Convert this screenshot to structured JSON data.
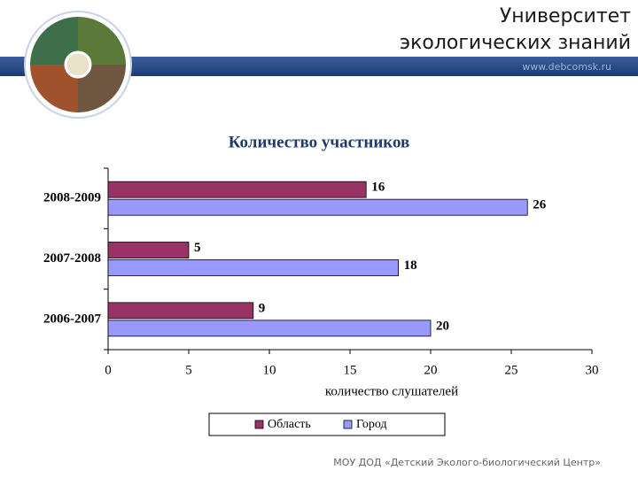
{
  "header": {
    "title_lines": [
      "Университет",
      "экологических знаний"
    ],
    "website": "www.debcomsk.ru"
  },
  "footer": "МОУ ДОД «Детский Эколого-биологический Центр»",
  "chart_data": {
    "type": "hbar",
    "title": "Количество участников",
    "categories": [
      "2008-2009",
      "2007-2008",
      "2006-2007"
    ],
    "series": [
      {
        "name": "Область",
        "color": "#993366",
        "values": [
          16,
          5,
          9
        ]
      },
      {
        "name": "Город",
        "color": "#9999ff",
        "values": [
          26,
          18,
          20
        ]
      }
    ],
    "xlabel": "количество слушателей",
    "xlim": [
      0,
      30
    ],
    "xticks": [
      0,
      5,
      10,
      15,
      20,
      25,
      30
    ],
    "legend": "bottom"
  }
}
